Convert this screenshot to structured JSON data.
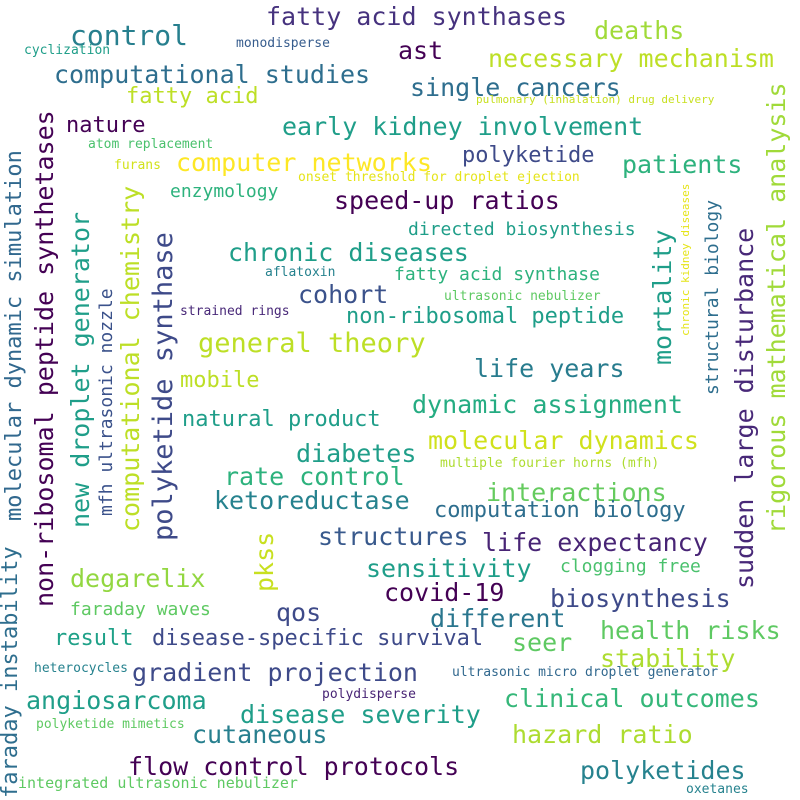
{
  "words": [
    {
      "text": "fatty acid synthases",
      "color": "#46327e"
    },
    {
      "text": "deaths",
      "color": "#a0da39"
    },
    {
      "text": "control",
      "color": "#277f8e"
    },
    {
      "text": "cyclization",
      "color": "#1f9e89"
    },
    {
      "text": "monodisperse",
      "color": "#365c8d"
    },
    {
      "text": "ast",
      "color": "#440154"
    },
    {
      "text": "necessary mechanism",
      "color": "#bddf26"
    },
    {
      "text": "computational studies",
      "color": "#2e6e8e"
    },
    {
      "text": "single cancers",
      "color": "#2e6e8e"
    },
    {
      "text": "fatty acid",
      "color": "#bddf26"
    },
    {
      "text": "pulmonary (inhalation) drug delivery",
      "color": "#c8e020"
    },
    {
      "text": "nature",
      "color": "#440154"
    },
    {
      "text": "early kidney involvement",
      "color": "#1f9e89"
    },
    {
      "text": "atom replacement",
      "color": "#4ac16d"
    },
    {
      "text": "computer networks",
      "color": "#fde725"
    },
    {
      "text": "polyketide",
      "color": "#3e4a89"
    },
    {
      "text": "patients",
      "color": "#2db27d"
    },
    {
      "text": "furans",
      "color": "#d2e21b"
    },
    {
      "text": "onset threshold for droplet ejection",
      "color": "#e5e419"
    },
    {
      "text": "enzymology",
      "color": "#2db27d"
    },
    {
      "text": "speed-up ratios",
      "color": "#440154"
    },
    {
      "text": "directed biosynthesis",
      "color": "#1f9e89"
    },
    {
      "text": "chronic diseases",
      "color": "#1f9e89"
    },
    {
      "text": "aflatoxin",
      "color": "#26828e"
    },
    {
      "text": "fatty acid synthase",
      "color": "#2db27d"
    },
    {
      "text": "cohort",
      "color": "#3b528b"
    },
    {
      "text": "ultrasonic nebulizer",
      "color": "#5ec962"
    },
    {
      "text": "strained rings",
      "color": "#482878"
    },
    {
      "text": "non-ribosomal peptide",
      "color": "#1f9e89"
    },
    {
      "text": "general theory",
      "color": "#bddf26"
    },
    {
      "text": "life years",
      "color": "#287c8e"
    },
    {
      "text": "mobile",
      "color": "#bddf26"
    },
    {
      "text": "dynamic assignment",
      "color": "#25ac82"
    },
    {
      "text": "natural product",
      "color": "#1f9e89"
    },
    {
      "text": "diabetes",
      "color": "#1f9e89"
    },
    {
      "text": "molecular dynamics",
      "color": "#d0e11c"
    },
    {
      "text": "multiple fourier horns (mfh)",
      "color": "#addc30"
    },
    {
      "text": "rate control",
      "color": "#2db27d"
    },
    {
      "text": "ketoreductase",
      "color": "#26828e"
    },
    {
      "text": "interactions",
      "color": "#65cb5e"
    },
    {
      "text": "computation biology",
      "color": "#2e6e8e"
    },
    {
      "text": "structures",
      "color": "#38598c"
    },
    {
      "text": "life expectancy",
      "color": "#482475"
    },
    {
      "text": "sensitivity",
      "color": "#1f9e89"
    },
    {
      "text": "clogging free",
      "color": "#4ac16d"
    },
    {
      "text": "degarelix",
      "color": "#93d741"
    },
    {
      "text": "covid-19",
      "color": "#440154"
    },
    {
      "text": "biosynthesis",
      "color": "#3e4a89"
    },
    {
      "text": "different",
      "color": "#2a768e"
    },
    {
      "text": "faraday waves",
      "color": "#5ec962"
    },
    {
      "text": "qos",
      "color": "#3e4a89"
    },
    {
      "text": "result",
      "color": "#1fa188"
    },
    {
      "text": "disease-specific survival",
      "color": "#3e4a89"
    },
    {
      "text": "seer",
      "color": "#5ec962"
    },
    {
      "text": "health risks",
      "color": "#5ec962"
    },
    {
      "text": "stability",
      "color": "#addc30"
    },
    {
      "text": "heterocycles",
      "color": "#26828e"
    },
    {
      "text": "gradient projection",
      "color": "#3e4a89"
    },
    {
      "text": "ultrasonic micro droplet generator",
      "color": "#31688e"
    },
    {
      "text": "angiosarcoma",
      "color": "#1f9e89"
    },
    {
      "text": "polydisperse",
      "color": "#482475"
    },
    {
      "text": "clinical outcomes",
      "color": "#35b779"
    },
    {
      "text": "disease severity",
      "color": "#1f9e89"
    },
    {
      "text": "polyketide mimetics",
      "color": "#5ec962"
    },
    {
      "text": "cutaneous",
      "color": "#277f8e"
    },
    {
      "text": "hazard ratio",
      "color": "#addc30"
    },
    {
      "text": "flow control protocols",
      "color": "#440154"
    },
    {
      "text": "polyketides",
      "color": "#26828e"
    },
    {
      "text": "integrated ultrasonic nebulizer",
      "color": "#5ec962"
    },
    {
      "text": "oxetanes",
      "color": "#26828e"
    },
    {
      "text": "molecular dynamic simulation",
      "color": "#31688e"
    },
    {
      "text": "faraday instability",
      "color": "#2e6e8e"
    },
    {
      "text": "non-ribosomal peptide synthetases",
      "color": "#440154"
    },
    {
      "text": "new droplet generator",
      "color": "#1f9e89"
    },
    {
      "text": "mfh ultrasonic nozzle",
      "color": "#3b528b"
    },
    {
      "text": "computational chemistry",
      "color": "#bddf26"
    },
    {
      "text": "polyketide synthase",
      "color": "#3e4a89"
    },
    {
      "text": "pkss",
      "color": "#c8e020"
    },
    {
      "text": "mortality",
      "color": "#1f9e89"
    },
    {
      "text": "structural biology",
      "color": "#2e6e8e"
    },
    {
      "text": "sudden large disturbance",
      "color": "#482878"
    },
    {
      "text": "rigorous mathematical analysis",
      "color": "#a0da39"
    },
    {
      "text": "chronic kidney diseases",
      "color": "#e5e419"
    }
  ]
}
